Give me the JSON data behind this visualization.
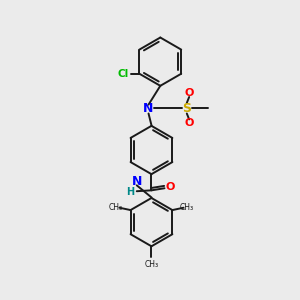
{
  "bg_color": "#ebebeb",
  "bond_color": "#1a1a1a",
  "N_color": "#0000ff",
  "O_color": "#ff0000",
  "S_color": "#ccaa00",
  "Cl_color": "#00bb00",
  "NH_color": "#008888",
  "figsize": [
    3.0,
    3.0
  ],
  "dpi": 100,
  "xlim": [
    0,
    10
  ],
  "ylim": [
    0,
    10
  ]
}
